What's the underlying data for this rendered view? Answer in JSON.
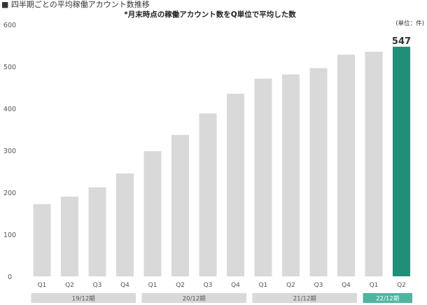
{
  "chart_data": {
    "type": "bar",
    "title": "■ 四半期ごとの平均稼働アカウント数推移",
    "subtitle": "*月末時点の稼働アカウント数をQ単位で平均した数",
    "unit_label": "(単位：件)",
    "categories": [
      "Q1",
      "Q2",
      "Q3",
      "Q4",
      "Q1",
      "Q2",
      "Q3",
      "Q4",
      "Q1",
      "Q2",
      "Q3",
      "Q4",
      "Q1",
      "Q2"
    ],
    "values": [
      172,
      190,
      212,
      245,
      298,
      337,
      388,
      435,
      471,
      481,
      496,
      528,
      535,
      547
    ],
    "highlight_index": 13,
    "highlight_value_label": "547",
    "ylim": [
      0,
      600
    ],
    "yticks": [
      0,
      100,
      200,
      300,
      400,
      500,
      600
    ],
    "xlabel": "",
    "ylabel": "",
    "grid": false,
    "periods": [
      {
        "label": "19/12期",
        "start": 0,
        "end": 3,
        "highlight": false
      },
      {
        "label": "20/12期",
        "start": 4,
        "end": 7,
        "highlight": false
      },
      {
        "label": "21/12期",
        "start": 8,
        "end": 11,
        "highlight": false
      },
      {
        "label": "22/12期",
        "start": 12,
        "end": 13,
        "highlight": true
      }
    ],
    "colors": {
      "bar": "#d9d9d9",
      "highlight_bar": "#1f8f78",
      "period_band": "#d9d9d9",
      "highlight_period_band": "#4fb4a0"
    }
  }
}
